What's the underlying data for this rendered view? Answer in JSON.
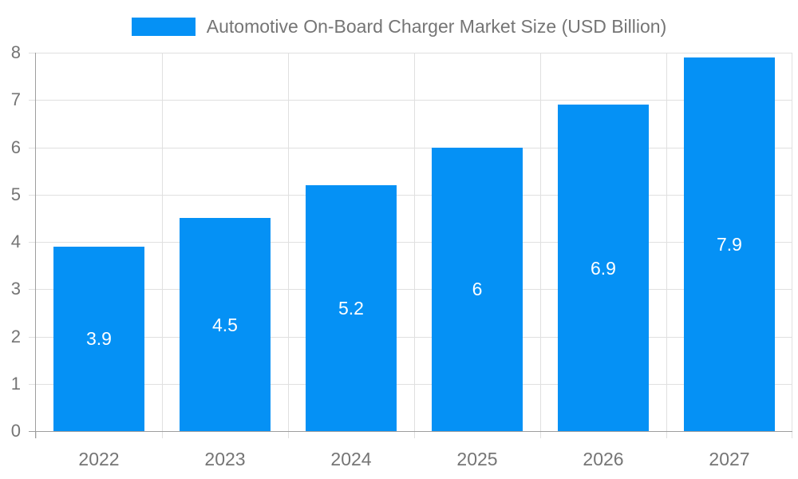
{
  "chart_data": {
    "type": "bar",
    "title": "Automotive On-Board Charger Market Size (USD Billion)",
    "categories": [
      "2022",
      "2023",
      "2024",
      "2025",
      "2026",
      "2027"
    ],
    "values": [
      3.9,
      4.5,
      5.2,
      6,
      6.9,
      7.9
    ],
    "data_labels": [
      "3.9",
      "4.5",
      "5.2",
      "6",
      "6.9",
      "7.9"
    ],
    "xlabel": "",
    "ylabel": "",
    "ylim": [
      0,
      8
    ],
    "yticks": [
      0,
      1,
      2,
      3,
      4,
      5,
      6,
      7,
      8
    ],
    "grid": true,
    "legend_position": "top"
  },
  "legend": {
    "label": "Automotive On-Board Charger Market Size (USD Billion)"
  },
  "colors": {
    "bar": "#0591f5",
    "grid": "#e0e0e0",
    "axis": "#9e9e9e",
    "text": "#757575",
    "data_label": "#ffffff",
    "background": "#ffffff"
  }
}
